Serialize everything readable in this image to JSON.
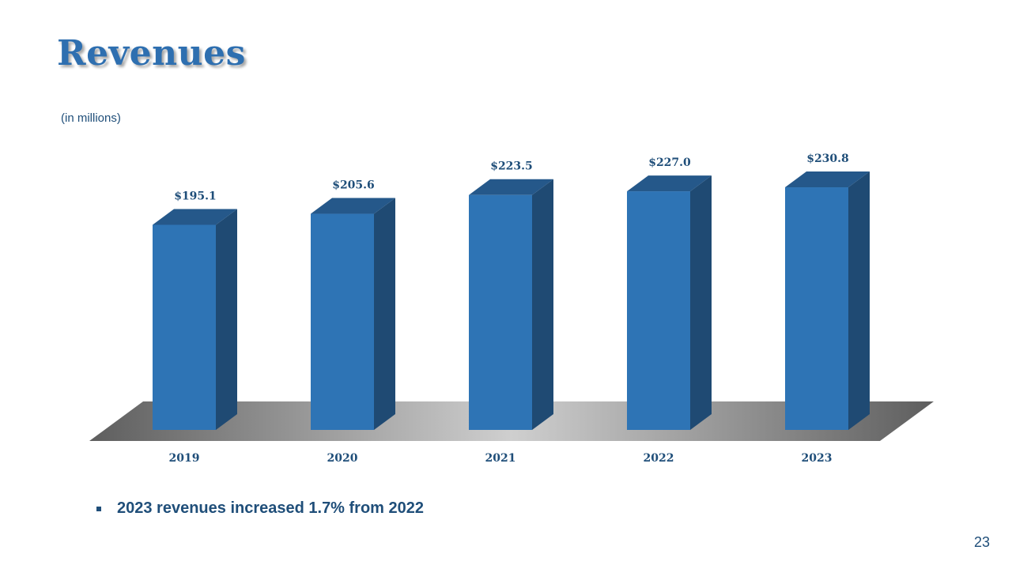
{
  "slide": {
    "title": "Revenues",
    "units_note": "(in millions)",
    "bullet": "2023 revenues increased 1.7% from 2022",
    "page_number": "23"
  },
  "colors": {
    "title": "#2e6fb0",
    "text": "#1f4e79",
    "bar_front": "#2e74b5",
    "bar_side": "#1f4a73",
    "bar_top": "#25588a"
  },
  "chart_data": {
    "type": "bar",
    "categories": [
      "2019",
      "2020",
      "2021",
      "2022",
      "2023"
    ],
    "values": [
      195.1,
      205.6,
      223.5,
      227.0,
      230.8
    ],
    "value_labels": [
      "$195.1",
      "$205.6",
      "$223.5",
      "$227.0",
      "$230.8"
    ],
    "title": "",
    "xlabel": "",
    "ylabel": "",
    "grid": false,
    "legend": "none",
    "style": "3d"
  }
}
